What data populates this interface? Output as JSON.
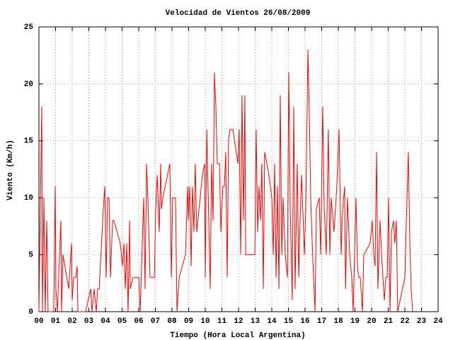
{
  "chart_data": {
    "type": "line",
    "title": "Velocidad de Vientos 26/08/2009",
    "x_label": "Tiempo (Hora Local Argentina)",
    "y_label": "Viento (Km/h)",
    "color": "#ff0000",
    "grid": true,
    "xlim": [
      0,
      24
    ],
    "ylim": [
      0,
      25
    ],
    "yticks": [
      0,
      5,
      10,
      15,
      20,
      25
    ],
    "xticks": [
      {
        "value": 0,
        "label": "00"
      },
      {
        "value": 1,
        "label": "01"
      },
      {
        "value": 2,
        "label": "02"
      },
      {
        "value": 3,
        "label": "03"
      },
      {
        "value": 4,
        "label": "04"
      },
      {
        "value": 5,
        "label": "05"
      },
      {
        "value": 6,
        "label": "06"
      },
      {
        "value": 7,
        "label": "07"
      },
      {
        "value": 8,
        "label": "08"
      },
      {
        "value": 9,
        "label": "09"
      },
      10,
      11,
      12,
      13,
      14,
      15,
      16,
      17,
      18,
      19,
      20,
      21,
      22,
      23,
      24
    ],
    "x": [
      0.0,
      0.09,
      0.17,
      0.21,
      0.3,
      0.38,
      0.47,
      0.55,
      0.89,
      0.98,
      1.02,
      1.11,
      1.32,
      1.36,
      1.45,
      1.79,
      1.96,
      2.0,
      2.09,
      2.21,
      2.3,
      2.34,
      2.81,
      3.11,
      3.19,
      3.32,
      3.45,
      3.53,
      3.62,
      3.87,
      3.96,
      4.04,
      4.13,
      4.21,
      4.3,
      4.43,
      4.51,
      4.89,
      5.02,
      5.11,
      5.19,
      5.28,
      5.36,
      5.45,
      5.49,
      5.66,
      6.0,
      6.09,
      6.17,
      6.3,
      6.38,
      6.47,
      6.55,
      6.68,
      6.94,
      7.02,
      7.11,
      7.23,
      7.32,
      7.36,
      7.45,
      7.87,
      7.96,
      8.04,
      8.21,
      8.3,
      8.43,
      8.81,
      8.94,
      8.98,
      9.06,
      9.15,
      9.23,
      9.32,
      9.4,
      9.49,
      9.83,
      9.96,
      10.0,
      10.09,
      10.21,
      10.3,
      10.38,
      10.47,
      10.55,
      10.64,
      10.72,
      10.85,
      10.94,
      11.06,
      11.15,
      11.23,
      11.32,
      11.4,
      11.49,
      11.66,
      11.96,
      12.04,
      12.13,
      12.21,
      12.3,
      12.38,
      12.43,
      12.98,
      13.06,
      13.15,
      13.23,
      13.32,
      13.4,
      13.49,
      13.57,
      13.83,
      14.0,
      14.09,
      14.17,
      14.26,
      14.34,
      14.43,
      14.51,
      14.6,
      14.68,
      14.81,
      14.94,
      15.02,
      15.11,
      15.23,
      15.32,
      15.4,
      15.53,
      15.62,
      15.7,
      15.79,
      15.96,
      16.04,
      16.13,
      16.17,
      16.26,
      16.34,
      16.43,
      16.51,
      16.6,
      16.68,
      16.85,
      16.94,
      17.06,
      17.15,
      17.28,
      17.4,
      17.49,
      17.57,
      17.74,
      17.91,
      18.04,
      18.17,
      18.26,
      18.38,
      18.43,
      18.55,
      18.68,
      18.81,
      18.89,
      19.06,
      19.15,
      19.23,
      19.32,
      19.45,
      19.53,
      19.91,
      20.04,
      20.13,
      20.21,
      20.3,
      20.38,
      20.51,
      20.6,
      20.68,
      20.77,
      20.85,
      20.94,
      21.02,
      21.11,
      21.19,
      21.32,
      21.4,
      21.49,
      21.57,
      22.0,
      22.13,
      22.21,
      22.3,
      22.38,
      22.47
    ],
    "values": [
      0,
      10,
      18,
      0,
      10,
      0,
      8,
      0,
      0,
      11,
      2,
      0,
      8,
      0,
      5,
      2,
      6,
      1,
      3,
      3,
      4,
      0,
      0,
      2,
      0,
      2,
      0,
      2,
      2,
      9,
      11,
      3,
      10,
      10,
      3,
      8,
      8,
      6,
      4,
      6,
      2,
      6,
      0,
      8,
      2,
      3,
      3,
      0,
      4,
      10,
      2,
      13,
      10,
      3,
      3,
      9,
      12,
      7,
      13,
      9,
      10,
      13,
      3,
      10,
      10,
      0,
      3,
      5,
      11,
      8,
      11,
      4,
      11,
      7,
      13,
      7,
      12,
      13,
      3,
      16,
      8,
      2,
      13,
      8,
      21,
      18,
      13,
      13,
      7,
      11,
      11,
      14,
      3,
      15,
      16,
      16,
      13,
      16,
      5,
      19,
      8,
      19,
      5,
      5,
      16,
      7,
      11,
      8,
      13,
      2,
      14,
      12,
      10,
      5,
      13,
      3,
      11,
      2,
      19,
      5,
      10,
      5,
      3,
      21,
      9,
      1,
      18,
      2,
      13,
      3,
      8,
      12,
      5,
      9,
      18,
      23,
      17,
      10,
      6,
      3,
      0,
      9,
      10,
      5,
      18,
      9,
      5,
      16,
      5,
      10,
      7,
      11,
      16,
      5,
      9,
      11,
      2,
      10,
      5,
      3,
      0,
      10,
      4,
      3,
      3,
      0,
      5,
      6,
      8,
      5,
      4,
      14,
      2,
      8,
      5,
      3,
      1,
      3,
      3,
      10,
      0,
      7,
      8,
      6,
      8,
      0,
      3,
      10,
      14,
      6,
      2,
      0
    ]
  }
}
